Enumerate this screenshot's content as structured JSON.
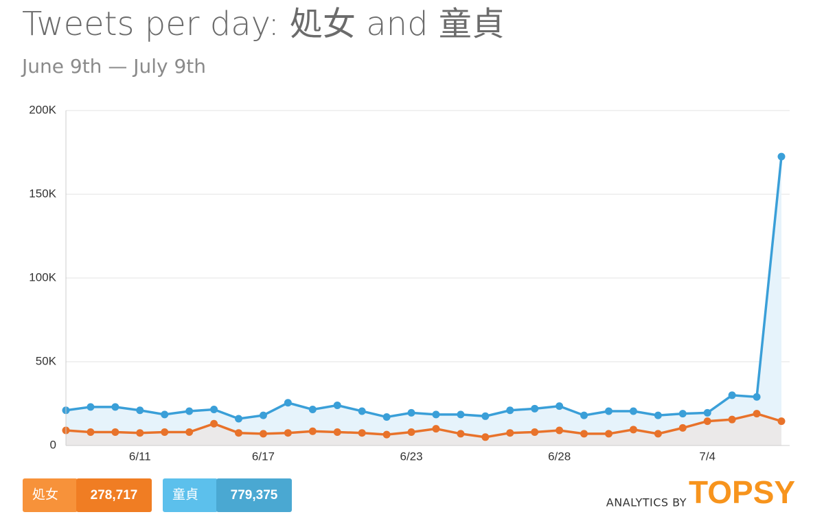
{
  "chart_data": {
    "type": "line",
    "title": "Tweets per day: 処女 and 童貞",
    "subtitle": "June 9th — July 9th",
    "categories": [
      null,
      null,
      null,
      "6/11",
      null,
      null,
      null,
      null,
      "6/17",
      null,
      null,
      null,
      null,
      null,
      "6/23",
      null,
      null,
      null,
      null,
      null,
      "6/28",
      null,
      null,
      null,
      null,
      null,
      "7/4",
      null,
      null,
      null
    ],
    "series": [
      {
        "name": "童貞",
        "color": "#3a9fd8",
        "area_color": "#e6f3fb",
        "total": "779,375",
        "values": [
          21000,
          23000,
          23000,
          21000,
          18500,
          20500,
          21500,
          16000,
          18000,
          25500,
          21500,
          24000,
          20500,
          17000,
          19500,
          18500,
          18500,
          17500,
          21000,
          22000,
          23500,
          18000,
          20500,
          20500,
          18000,
          19000,
          19500,
          30000,
          29000,
          172500
        ]
      },
      {
        "name": "処女",
        "color": "#e8722a",
        "area_color": "#ebe9e9",
        "total": "278,717",
        "values": [
          9000,
          8000,
          8000,
          7500,
          8000,
          8000,
          13000,
          7500,
          7000,
          7500,
          8500,
          8000,
          7500,
          6500,
          8000,
          10000,
          7000,
          5000,
          7500,
          8000,
          9000,
          7000,
          7000,
          9500,
          7000,
          10500,
          14500,
          15500,
          19000,
          14500
        ]
      }
    ],
    "ylim": [
      0,
      200000
    ],
    "yticks": [
      0,
      {
        "value": 50000,
        "label": "50K"
      },
      {
        "value": 100000,
        "label": "100K"
      },
      {
        "value": 150000,
        "label": "150K"
      },
      {
        "value": 200000,
        "label": "200K"
      }
    ],
    "grid": true,
    "branding": {
      "prefix": "ANALYTICS BY",
      "name": "TOPSY",
      "color": "#f7941d"
    }
  }
}
